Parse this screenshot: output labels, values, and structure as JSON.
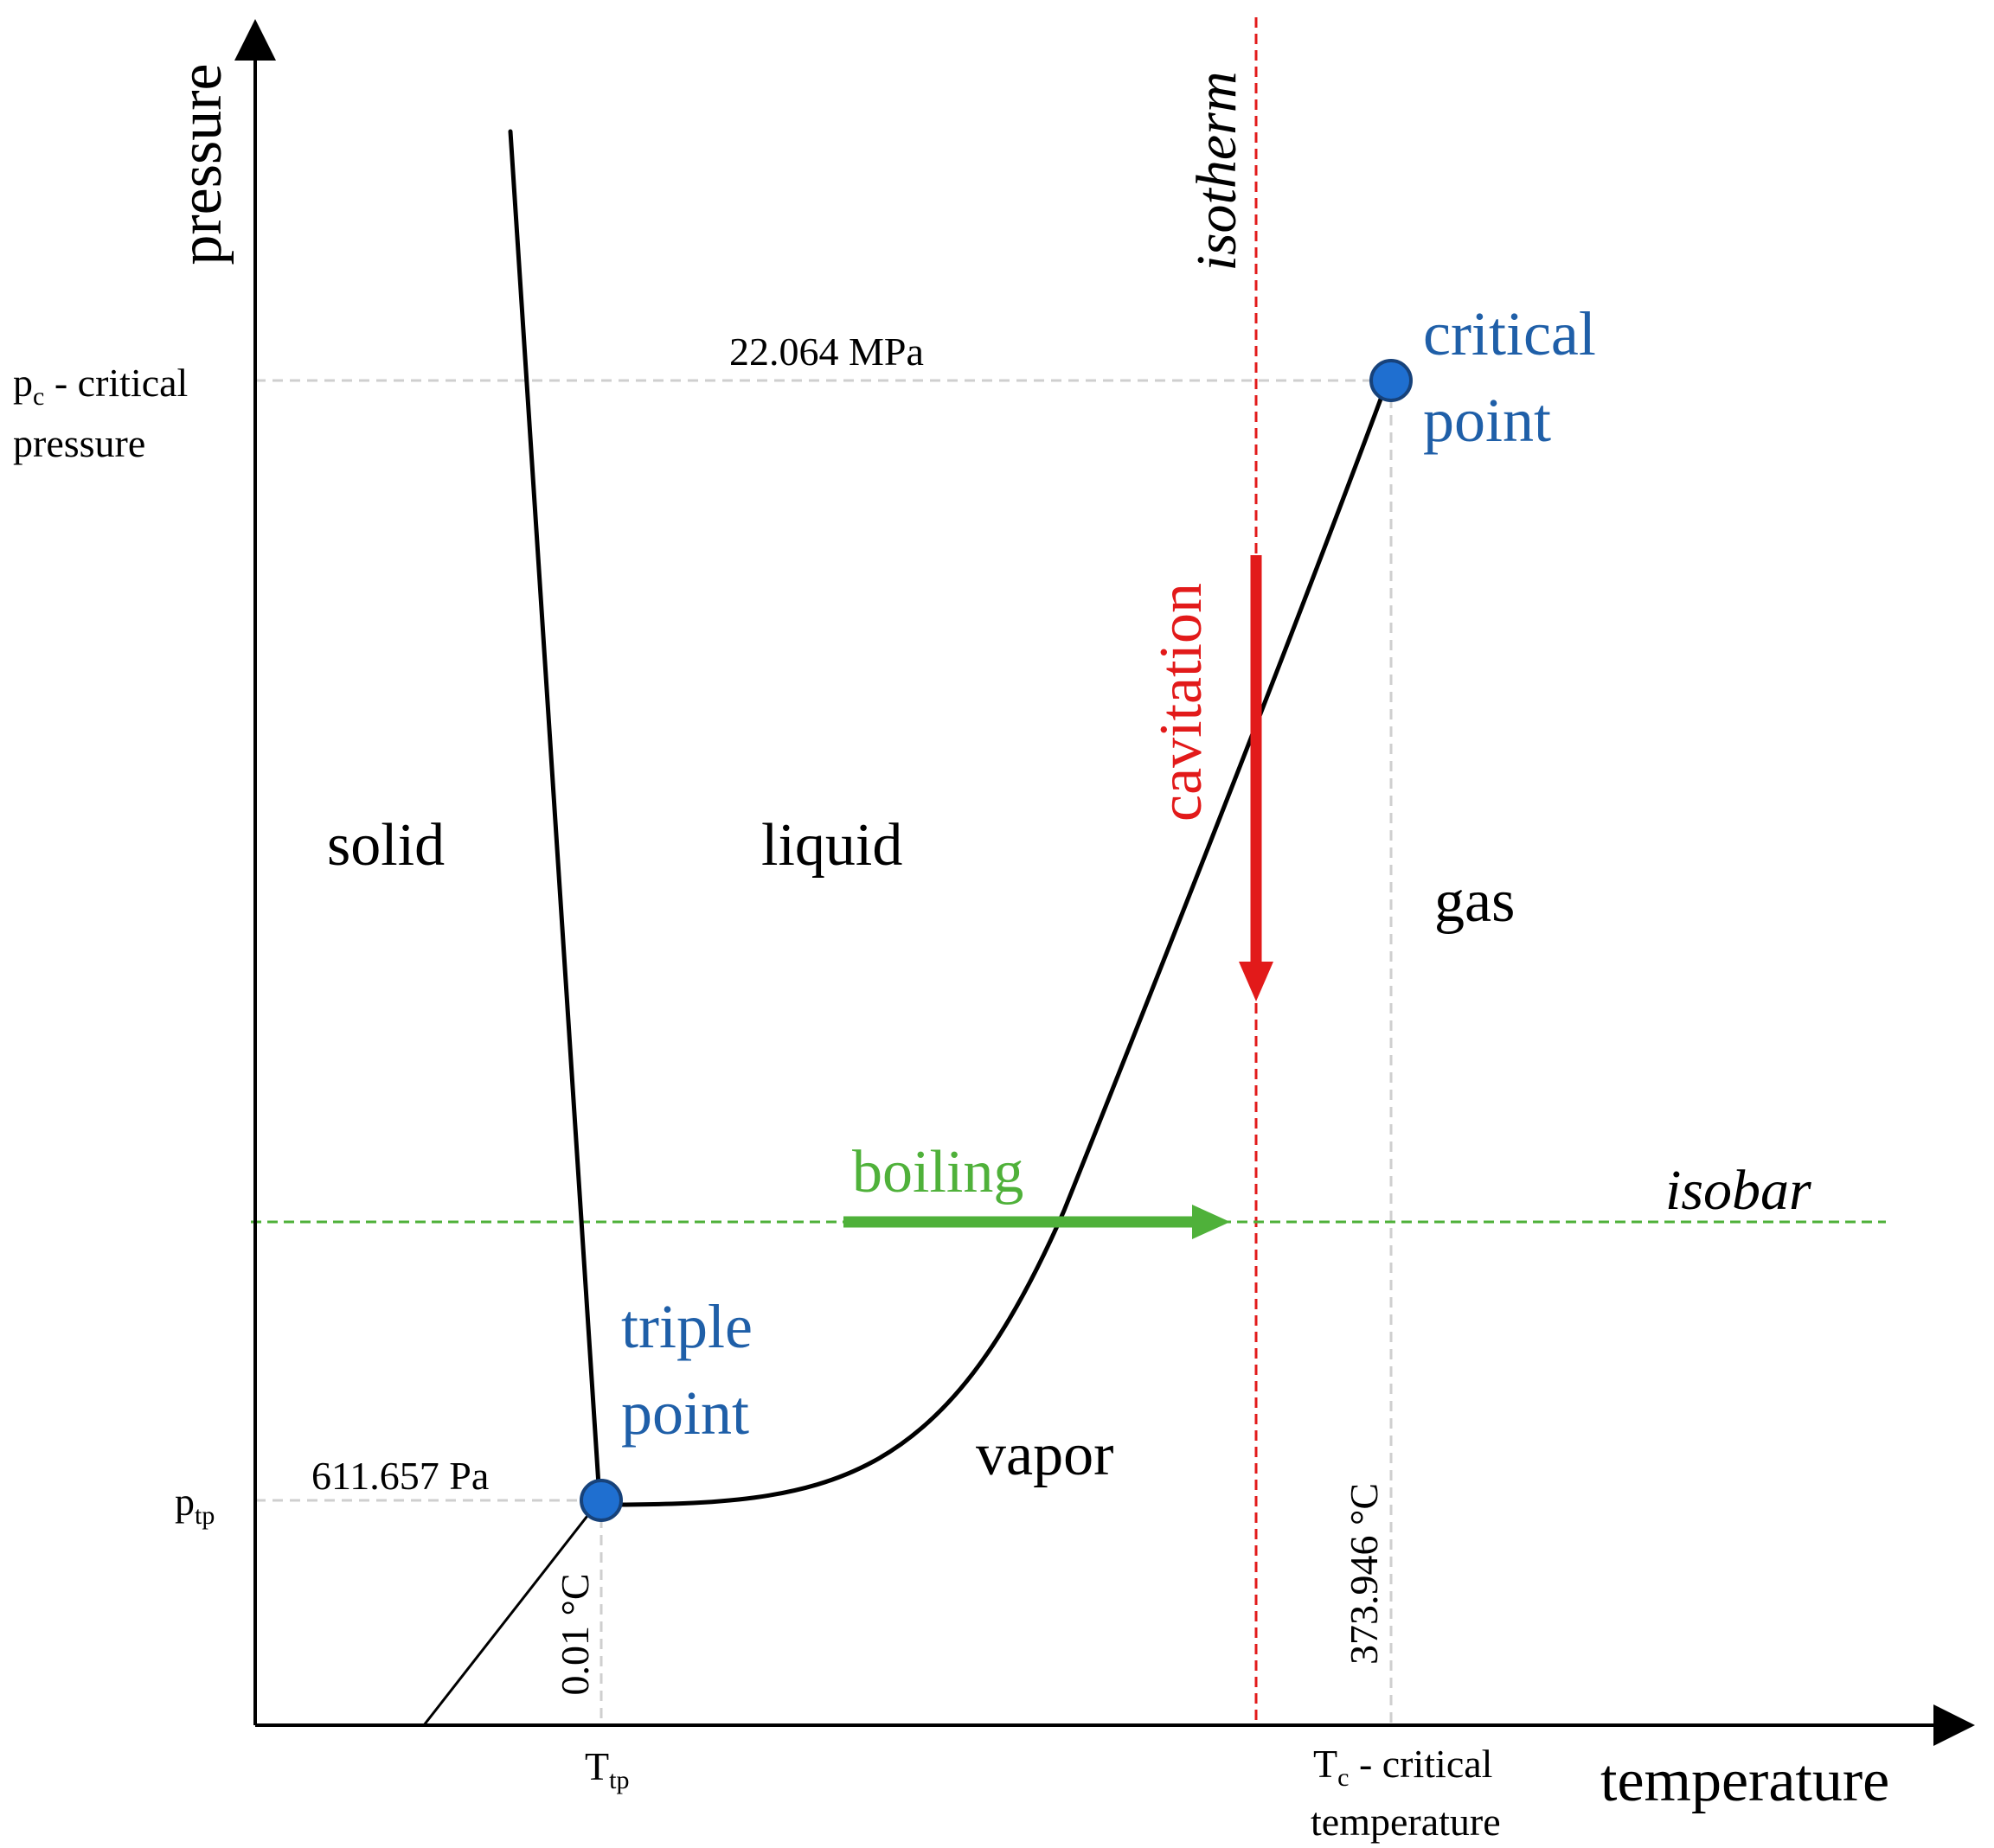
{
  "axes": {
    "x_label": "temperature",
    "y_label": "pressure"
  },
  "regions": {
    "solid": "solid",
    "liquid": "liquid",
    "gas": "gas",
    "vapor": "vapor"
  },
  "points": {
    "triple_line1": "triple",
    "triple_line2": "point",
    "critical_line1": "critical",
    "critical_line2": "point"
  },
  "values": {
    "critical_pressure": "22.064 MPa",
    "triple_pressure": "611.657 Pa",
    "triple_temperature": "0.01 °C",
    "critical_temperature": "373.946 °C"
  },
  "ticks": {
    "pc_symbol": "p",
    "pc_sub": "c",
    "pc_text": " - critical",
    "pc_line2": "pressure",
    "ptp_symbol": "p",
    "ptp_sub": "tp",
    "ttp_symbol": "T",
    "ttp_sub": "tp",
    "tc_symbol": "T",
    "tc_sub": "c",
    "tc_text": " - critical",
    "tc_line2": "temperature"
  },
  "processes": {
    "isotherm": "isotherm",
    "isobar": "isobar",
    "cavitation": "cavitation",
    "boiling": "boiling"
  },
  "colors": {
    "blue": "#1f5fa8",
    "point_fill": "#1f6fd0",
    "red": "#e21a1a",
    "green": "#4fb13a",
    "grid": "#cfcfcf"
  }
}
